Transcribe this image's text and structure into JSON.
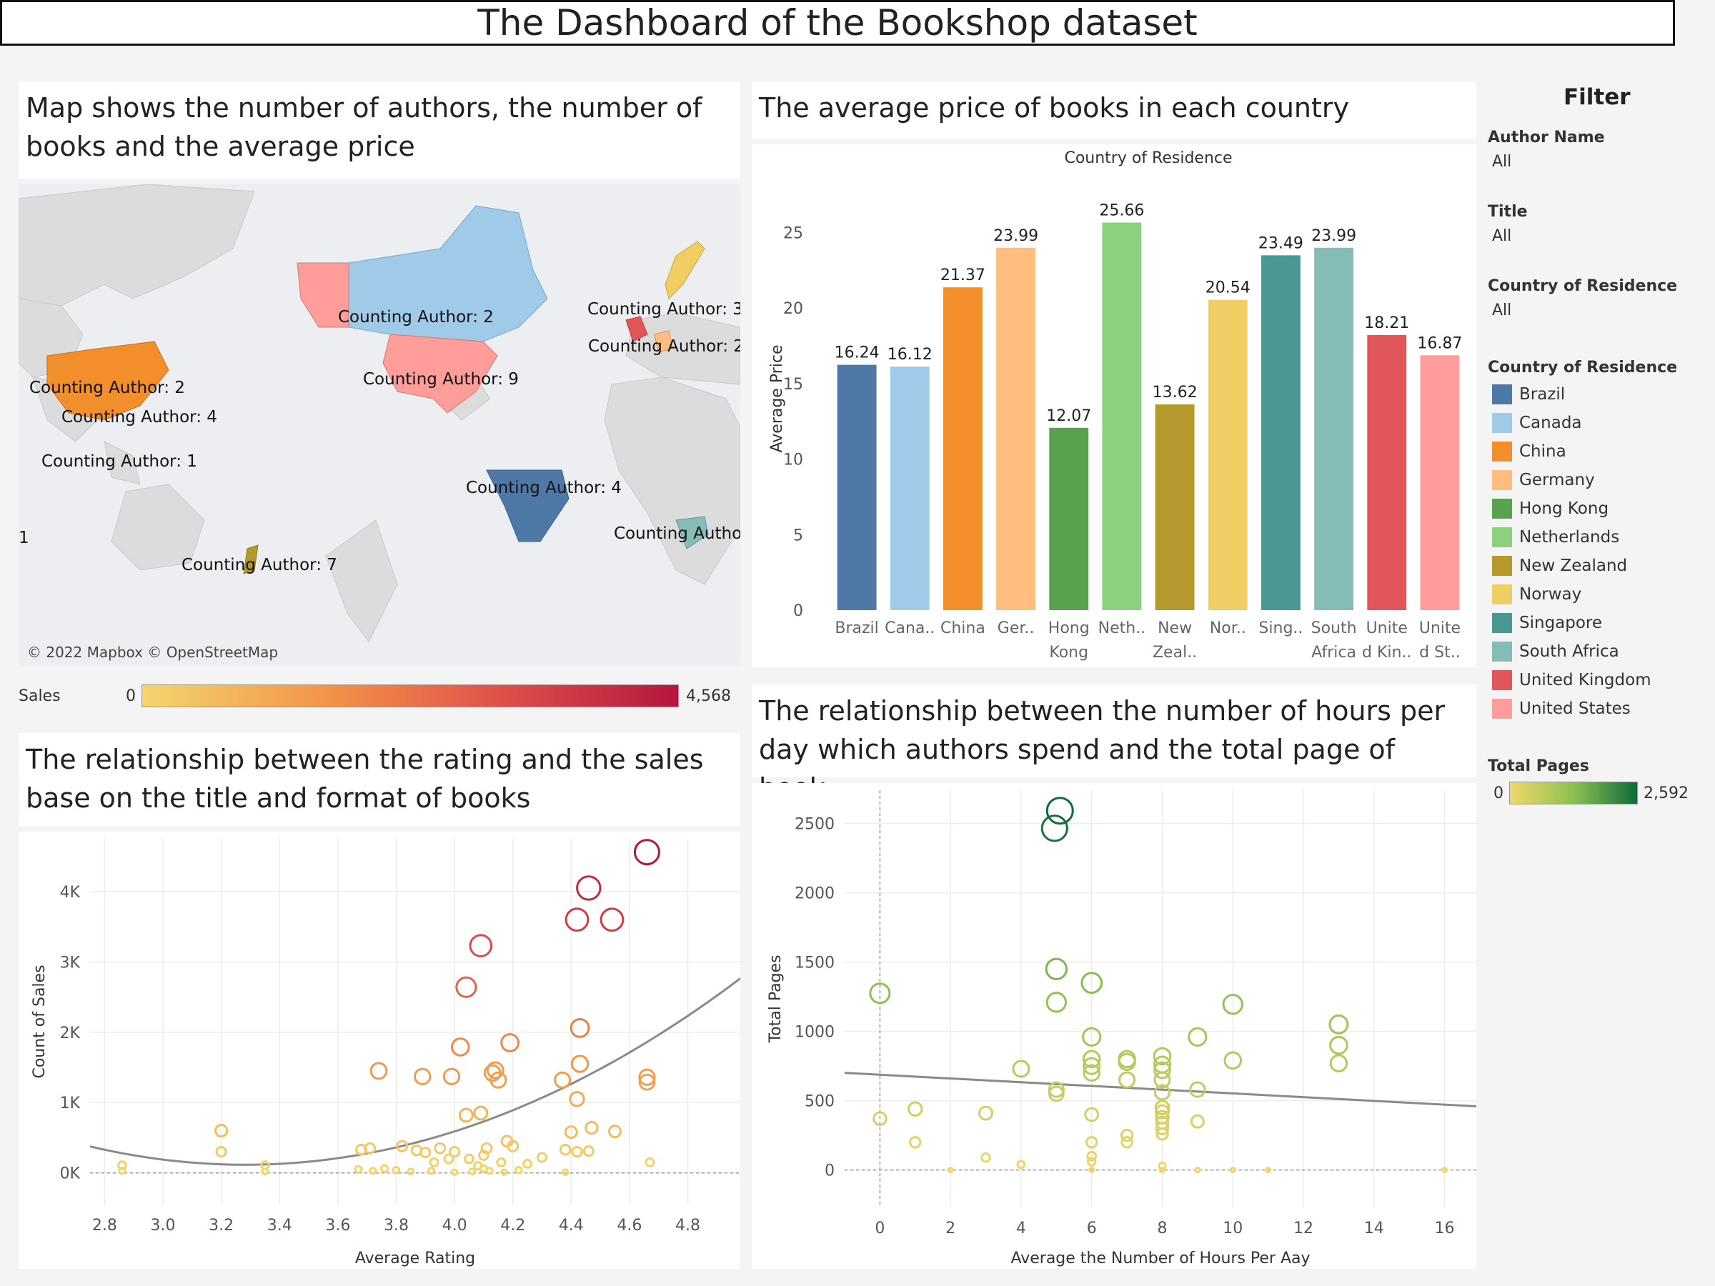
{
  "dashboard_title": "The Dashboard of the Bookshop dataset",
  "panels": {
    "map_title": "Map shows the number of authors, the number of books and the average price",
    "bar_title": "The average price of books in each country",
    "scatter1_title": "The relationship between the rating and the sales base on the title and format of books",
    "scatter2_title": "The relationship between the number of hours per day which authors spend and the total page of book"
  },
  "map": {
    "attribution": "© 2022 Mapbox © OpenStreetMap",
    "labels": [
      {
        "text": "Counting Author: 2",
        "region": "Canada"
      },
      {
        "text": "Counting Author: 9",
        "region": "United States"
      },
      {
        "text": "Counting Author: 3",
        "region": "Norway"
      },
      {
        "text": "Counting Author: 2",
        "region": "Germany"
      },
      {
        "text": "Counting Author: 2",
        "region": "China"
      },
      {
        "text": "Counting Author: 4",
        "region": "Hong Kong"
      },
      {
        "text": "Counting Author: 1",
        "region": "Singapore"
      },
      {
        "text": "Counting Author: 4",
        "region": "Brazil"
      },
      {
        "text": "Counting Autho",
        "region": "South Africa"
      },
      {
        "text": "Counting Author: 7",
        "region": "New Zealand"
      },
      {
        "text": "1",
        "region": "edge"
      }
    ],
    "sales_legend": {
      "label": "Sales",
      "min": "0",
      "max": "4,568",
      "colors": [
        "#f3d56b",
        "#f3964a",
        "#e0514a",
        "#b5163e"
      ]
    }
  },
  "filters": {
    "heading": "Filter",
    "items": [
      {
        "label": "Author Name",
        "value": "All"
      },
      {
        "label": "Title",
        "value": "All"
      },
      {
        "label": "Country of Residence",
        "value": "All"
      }
    ],
    "color_legend_title": "Country of Residence",
    "total_pages_legend": {
      "label": "Total Pages",
      "min": "0",
      "max": "2,592",
      "colors": [
        "#f0d76a",
        "#8cc152",
        "#0f6b3a"
      ]
    }
  },
  "chart_data": [
    {
      "type": "bar",
      "title": "Country of Residence",
      "xlabel": "",
      "ylabel": "Average Price",
      "ylim": [
        0,
        28
      ],
      "yticks": [
        0,
        5,
        10,
        15,
        20,
        25
      ],
      "categories": [
        "Brazil",
        "Canada",
        "China",
        "Germany",
        "Hong Kong",
        "Netherlands",
        "New Zealand",
        "Norway",
        "Singapore",
        "South Africa",
        "United Kingdom",
        "United States"
      ],
      "tick_labels": [
        [
          "Brazil"
        ],
        [
          "Cana.."
        ],
        [
          "China"
        ],
        [
          "Ger.."
        ],
        [
          "Hong",
          "Kong"
        ],
        [
          "Neth.."
        ],
        [
          "New",
          "Zeal.."
        ],
        [
          "Nor.."
        ],
        [
          "Sing.."
        ],
        [
          "South",
          "Africa"
        ],
        [
          "Unite",
          "d Kin.."
        ],
        [
          "Unite",
          "d St.."
        ]
      ],
      "values": [
        16.24,
        16.12,
        21.37,
        23.99,
        12.07,
        25.66,
        13.62,
        20.54,
        23.49,
        23.99,
        18.21,
        16.87
      ],
      "value_labels": [
        "16.24",
        "16.12",
        "21.37",
        "23.99",
        "12.07",
        "25.66",
        "13.62",
        "20.54",
        "23.49",
        "23.99",
        "18.21",
        "16.87"
      ],
      "colors": [
        "#4e79a7",
        "#a0cbe8",
        "#f28e2b",
        "#ffbe7d",
        "#59a14f",
        "#8cd17d",
        "#b6992d",
        "#f1ce63",
        "#499894",
        "#86bcb6",
        "#e15759",
        "#ff9d9a"
      ]
    },
    {
      "type": "scatter",
      "xlabel": "Average Rating",
      "ylabel": "Count of Sales",
      "xlim": [
        2.75,
        4.98
      ],
      "ylim": [
        -450,
        4750
      ],
      "xticks": [
        "2.8",
        "3.0",
        "3.2",
        "3.4",
        "3.6",
        "3.8",
        "4.0",
        "4.2",
        "4.4",
        "4.6",
        "4.8"
      ],
      "yticks": [
        {
          "v": 0,
          "label": "0K"
        },
        {
          "v": 1000,
          "label": "1K"
        },
        {
          "v": 2000,
          "label": "2K"
        },
        {
          "v": 3000,
          "label": "3K"
        },
        {
          "v": 4000,
          "label": "4K"
        }
      ],
      "trend": "polynomial",
      "points": [
        [
          4.66,
          4560
        ],
        [
          4.46,
          4050
        ],
        [
          4.42,
          3600
        ],
        [
          4.54,
          3600
        ],
        [
          4.09,
          3230
        ],
        [
          4.04,
          2640
        ],
        [
          4.43,
          2060
        ],
        [
          4.19,
          1850
        ],
        [
          4.02,
          1790
        ],
        [
          3.74,
          1450
        ],
        [
          4.14,
          1460
        ],
        [
          4.15,
          1320
        ],
        [
          4.13,
          1420
        ],
        [
          3.89,
          1370
        ],
        [
          3.99,
          1370
        ],
        [
          4.37,
          1320
        ],
        [
          4.43,
          1550
        ],
        [
          4.66,
          1360
        ],
        [
          4.66,
          1290
        ],
        [
          4.42,
          1050
        ],
        [
          4.09,
          850
        ],
        [
          4.04,
          820
        ],
        [
          4.18,
          450
        ],
        [
          4.47,
          640
        ],
        [
          4.55,
          590
        ],
        [
          4.4,
          580
        ],
        [
          3.2,
          600
        ],
        [
          3.2,
          300
        ],
        [
          4.11,
          350
        ],
        [
          4.2,
          380
        ],
        [
          3.71,
          350
        ],
        [
          3.68,
          330
        ],
        [
          3.82,
          380
        ],
        [
          3.95,
          350
        ],
        [
          4.0,
          300
        ],
        [
          4.1,
          250
        ],
        [
          4.38,
          330
        ],
        [
          4.42,
          300
        ],
        [
          4.3,
          220
        ],
        [
          4.05,
          200
        ],
        [
          4.25,
          130
        ],
        [
          3.93,
          150
        ],
        [
          3.87,
          320
        ],
        [
          3.9,
          290
        ],
        [
          3.98,
          200
        ],
        [
          4.16,
          150
        ],
        [
          4.08,
          100
        ],
        [
          4.46,
          310
        ],
        [
          4.67,
          150
        ],
        [
          2.86,
          110
        ],
        [
          2.86,
          30
        ],
        [
          3.35,
          110
        ],
        [
          3.35,
          20
        ],
        [
          3.67,
          50
        ],
        [
          3.72,
          30
        ],
        [
          3.76,
          60
        ],
        [
          3.8,
          40
        ],
        [
          3.85,
          20
        ],
        [
          3.92,
          30
        ],
        [
          4.0,
          10
        ],
        [
          4.06,
          20
        ],
        [
          4.1,
          60
        ],
        [
          4.12,
          30
        ],
        [
          4.17,
          10
        ],
        [
          4.22,
          40
        ],
        [
          4.38,
          10
        ]
      ]
    },
    {
      "type": "scatter",
      "xlabel": "Average the Number of Hours Per Aay",
      "ylabel": "Total Pages",
      "xlim": [
        -1.0,
        16.9
      ],
      "ylim": [
        -270,
        2740
      ],
      "xticks": [
        0,
        2,
        4,
        6,
        8,
        10,
        12,
        14,
        16
      ],
      "yticks": [
        0,
        500,
        1000,
        1500,
        2000,
        2500
      ],
      "trend": "linear",
      "points": [
        [
          5.1,
          2592
        ],
        [
          4.95,
          2465
        ],
        [
          5.0,
          1450
        ],
        [
          6.0,
          1350
        ],
        [
          0.0,
          1275
        ],
        [
          5.0,
          1210
        ],
        [
          10.0,
          1195
        ],
        [
          13.0,
          1050
        ],
        [
          6.0,
          960
        ],
        [
          9.0,
          960
        ],
        [
          13.0,
          900
        ],
        [
          6.0,
          800
        ],
        [
          7.0,
          800
        ],
        [
          8.0,
          820
        ],
        [
          10.0,
          790
        ],
        [
          13.0,
          770
        ],
        [
          6.0,
          750
        ],
        [
          8.0,
          760
        ],
        [
          6.0,
          700
        ],
        [
          7.0,
          780
        ],
        [
          4.0,
          730
        ],
        [
          8.0,
          720
        ],
        [
          7.0,
          650
        ],
        [
          8.0,
          650
        ],
        [
          5.0,
          580
        ],
        [
          9.0,
          580
        ],
        [
          5.0,
          550
        ],
        [
          8.0,
          560
        ],
        [
          1.0,
          440
        ],
        [
          3.0,
          410
        ],
        [
          6.0,
          400
        ],
        [
          8.0,
          450
        ],
        [
          8.0,
          420
        ],
        [
          8.0,
          380
        ],
        [
          0.0,
          370
        ],
        [
          8.0,
          340
        ],
        [
          9.0,
          350
        ],
        [
          8.0,
          300
        ],
        [
          7.0,
          250
        ],
        [
          8.0,
          260
        ],
        [
          1.0,
          200
        ],
        [
          7.0,
          200
        ],
        [
          6.0,
          200
        ],
        [
          6.0,
          100
        ],
        [
          3.0,
          90
        ],
        [
          4.0,
          40
        ],
        [
          6.0,
          60
        ],
        [
          8.0,
          30
        ],
        [
          2.0,
          0
        ],
        [
          6.0,
          0
        ],
        [
          8.0,
          0
        ],
        [
          9.0,
          0
        ],
        [
          10.0,
          0
        ],
        [
          11.0,
          0
        ],
        [
          16.0,
          0
        ]
      ]
    }
  ]
}
